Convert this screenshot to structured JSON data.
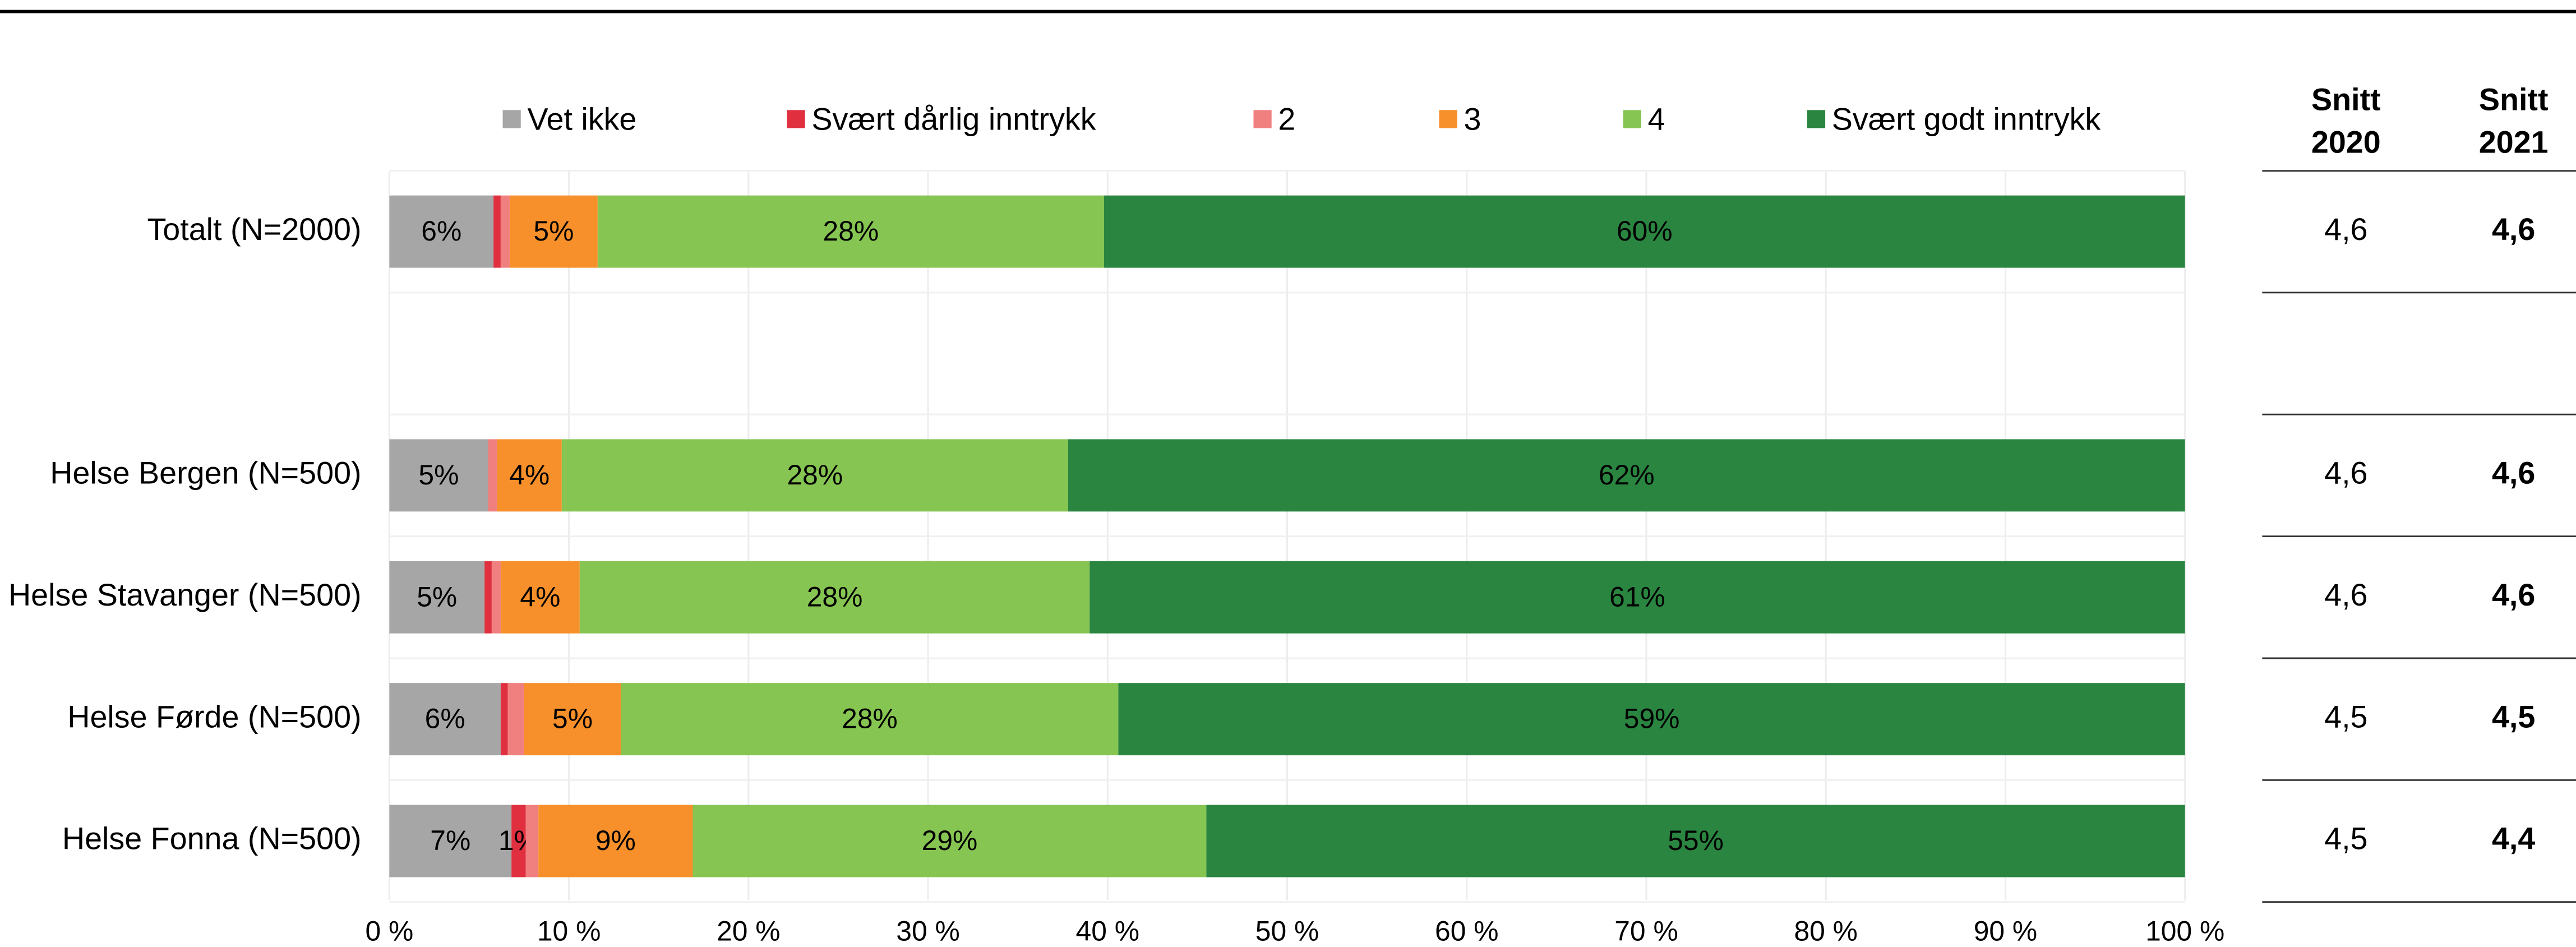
{
  "chart_data": {
    "type": "stacked_barh",
    "categories": [
      "Totalt (N=2000)",
      null,
      "Helse Bergen (N=500)",
      "Helse Stavanger (N=500)",
      "Helse Førde (N=500)",
      "Helse Fonna (N=500)"
    ],
    "series": [
      {
        "name": "Vet ikke",
        "color": "#a6a6a6",
        "label_color": "#000000",
        "values": [
          5.8,
          null,
          5.5,
          5.3,
          6.2,
          6.8
        ],
        "value_labels": [
          "6%",
          null,
          "5%",
          "5%",
          "6%",
          "7%"
        ]
      },
      {
        "name": "Svært dårlig inntrykk",
        "color": "#e03040",
        "label_color": "#000000",
        "values": [
          0.4,
          null,
          0,
          0.4,
          0.4,
          0.8
        ],
        "value_labels": [
          null,
          null,
          null,
          null,
          null,
          "1%"
        ]
      },
      {
        "name": "2",
        "color": "#f08080",
        "label_color": "#000000",
        "values": [
          0.5,
          null,
          0.5,
          0.5,
          0.9,
          0.7
        ],
        "value_labels": [
          null,
          null,
          null,
          null,
          null,
          null
        ]
      },
      {
        "name": "3",
        "color": "#f7902a",
        "label_color": "#000000",
        "values": [
          4.9,
          null,
          3.6,
          4.4,
          5.4,
          8.6
        ],
        "value_labels": [
          "5%",
          null,
          "4%",
          "4%",
          "5%",
          "9%"
        ]
      },
      {
        "name": "4",
        "color": "#86c552",
        "label_color": "#000000",
        "values": [
          28.2,
          null,
          28.2,
          28.4,
          27.7,
          28.6
        ],
        "value_labels": [
          "28%",
          null,
          "28%",
          "28%",
          "28%",
          "29%"
        ]
      },
      {
        "name": "Svært godt inntrykk",
        "color": "#2a8540",
        "label_color": "#ffffff",
        "values": [
          60.2,
          null,
          62.2,
          61.0,
          59.4,
          54.5
        ],
        "value_labels": [
          "60%",
          null,
          "62%",
          "61%",
          "59%",
          "55%"
        ]
      }
    ],
    "xlim": [
      0,
      100
    ],
    "xticks": [
      {
        "value": 0,
        "label": "0 %"
      },
      {
        "value": 10,
        "label": "10 %"
      },
      {
        "value": 20,
        "label": "20 %"
      },
      {
        "value": 30,
        "label": "30 %"
      },
      {
        "value": 40,
        "label": "40 %"
      },
      {
        "value": 50,
        "label": "50 %"
      },
      {
        "value": 60,
        "label": "60 %"
      },
      {
        "value": 70,
        "label": "70 %"
      },
      {
        "value": 80,
        "label": "80 %"
      },
      {
        "value": 90,
        "label": "90 %"
      },
      {
        "value": 100,
        "label": "100 %"
      }
    ],
    "grid": true,
    "legend": "top",
    "averages": {
      "headers": [
        [
          "Snitt",
          "2020"
        ],
        [
          "Snitt",
          "2021"
        ]
      ],
      "rows": [
        [
          "4,6",
          "4,6"
        ],
        null,
        [
          "4,6",
          "4,6"
        ],
        [
          "4,6",
          "4,6"
        ],
        [
          "4,5",
          "4,5"
        ],
        [
          "4,5",
          "4,4"
        ]
      ]
    }
  }
}
